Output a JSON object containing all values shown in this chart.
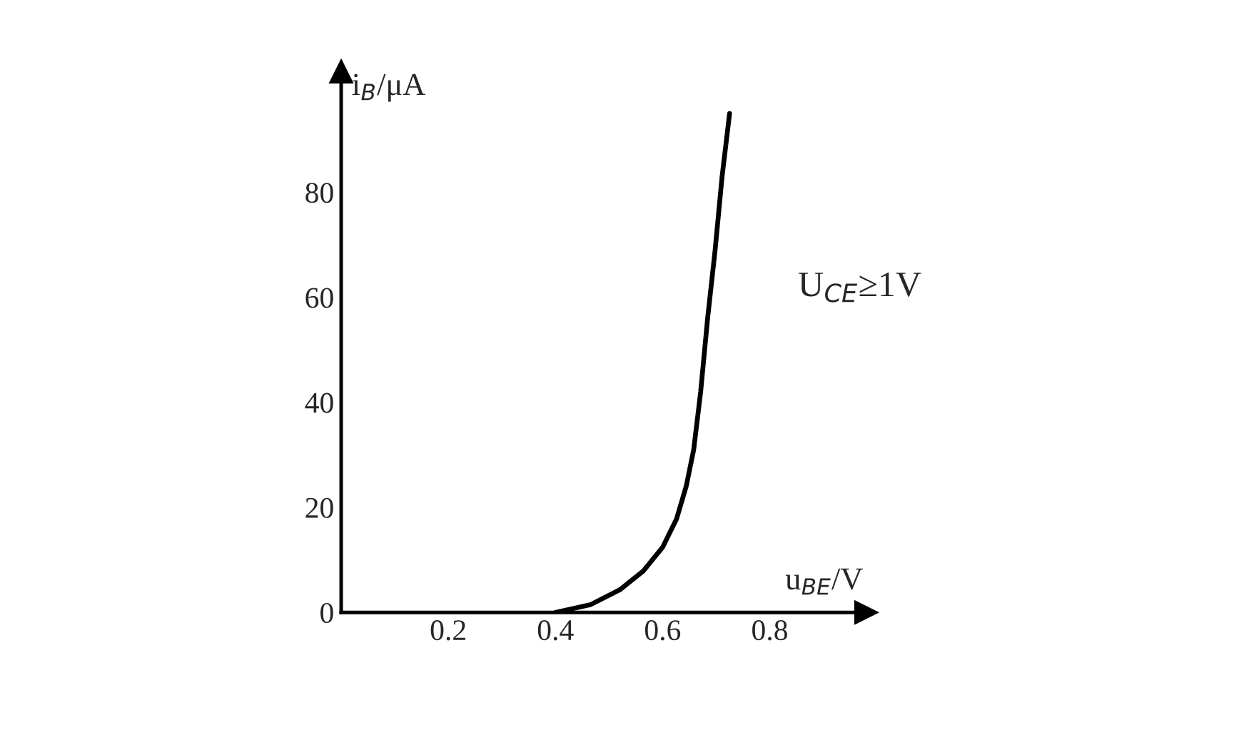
{
  "chart_data": {
    "type": "line",
    "xlabel": "u$_{BE}$/V",
    "ylabel": "i$_{B}$/μA",
    "x": [
      0.4,
      0.466,
      0.52,
      0.564,
      0.6,
      0.626,
      0.644,
      0.658,
      0.671,
      0.684,
      0.698,
      0.711,
      0.725
    ],
    "series": [
      {
        "color": "#000000",
        "values": [
          0,
          1.5,
          4.3,
          7.9,
          12.4,
          17.8,
          24,
          31,
          42,
          56,
          69,
          83,
          95
        ]
      }
    ],
    "xlim": [
      0,
      0.98
    ],
    "xticks": [
      0.2,
      0.4,
      0.6,
      0.8
    ],
    "ylim": [
      0,
      103
    ],
    "yticks": [
      0,
      20,
      40,
      60,
      80
    ],
    "annotations": [
      "U$_{CE}$≥1V"
    ],
    "grid": false,
    "legend": false,
    "marker": "none",
    "line_style": "solid"
  }
}
